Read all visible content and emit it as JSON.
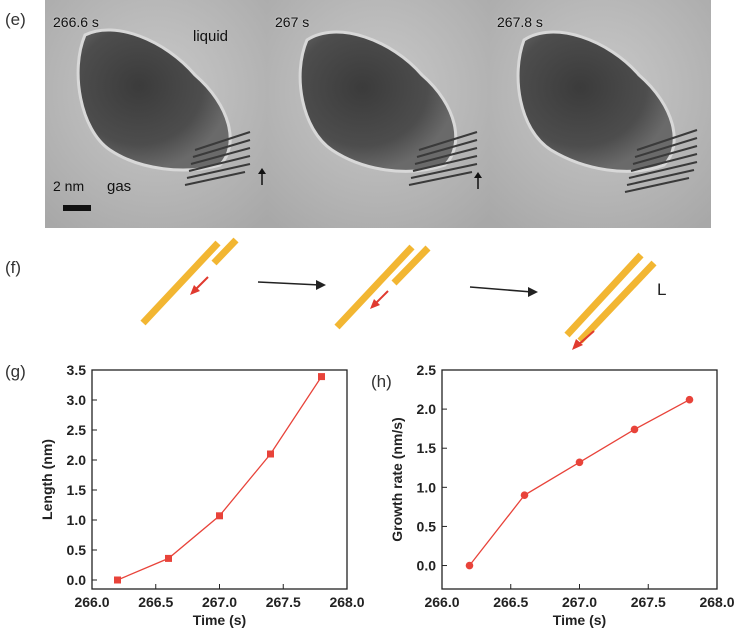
{
  "panels": {
    "e": "(e)",
    "f": "(f)",
    "g": "(g)",
    "h": "(h)"
  },
  "panel_e": {
    "frames": [
      {
        "time": "266.6 s"
      },
      {
        "time": "267 s"
      },
      {
        "time": "267.8 s"
      }
    ],
    "liquid_label": "liquid",
    "gas_label": "gas",
    "scale_bar_label": "2 nm"
  },
  "panel_f": {
    "length_label": "L",
    "colors": {
      "rod": "#f2b632",
      "growth_arrow": "#e03a2f",
      "process_arrow": "#222222"
    }
  },
  "chart_data": [
    {
      "type": "line",
      "panel": "(g)",
      "xlabel": "Time (s)",
      "ylabel": "Length (nm)",
      "xlim": [
        266.0,
        268.0
      ],
      "ylim": [
        -0.15,
        3.5
      ],
      "xticks": [
        "266.0",
        "266.5",
        "267.0",
        "267.5",
        "268.0"
      ],
      "yticks": [
        "0.0",
        "0.5",
        "1.0",
        "1.5",
        "2.0",
        "2.5",
        "3.0",
        "3.5"
      ],
      "marker": "square",
      "color": "#e8433a",
      "x": [
        266.2,
        266.6,
        267.0,
        267.4,
        267.8
      ],
      "y": [
        0.0,
        0.36,
        1.07,
        2.1,
        3.39
      ]
    },
    {
      "type": "line",
      "panel": "(h)",
      "xlabel": "Time (s)",
      "ylabel": "Growth rate (nm/s)",
      "xlim": [
        266.0,
        268.0
      ],
      "ylim": [
        -0.3,
        2.5
      ],
      "xticks": [
        "266.0",
        "266.5",
        "267.0",
        "267.5",
        "268.0"
      ],
      "yticks": [
        "0.0",
        "0.5",
        "1.0",
        "1.5",
        "2.0",
        "2.5"
      ],
      "marker": "circle",
      "color": "#e8433a",
      "x": [
        266.2,
        266.6,
        267.0,
        267.4,
        267.8
      ],
      "y": [
        0.0,
        0.9,
        1.32,
        1.74,
        2.12
      ]
    }
  ]
}
